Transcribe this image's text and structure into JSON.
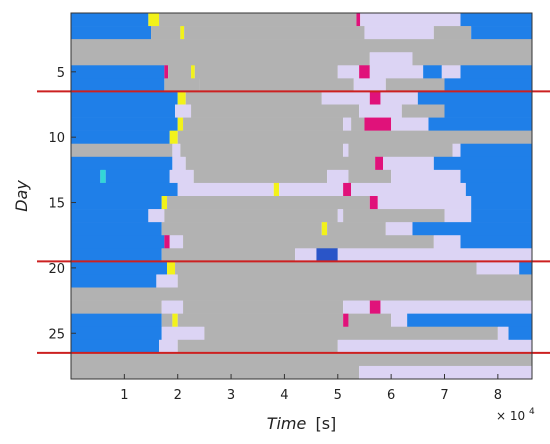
{
  "chart_data": {
    "type": "heatmap",
    "title": "",
    "xlabel": "Time",
    "xlabel_unit": "[s]",
    "ylabel": "Day",
    "x_multiplier_base": "× 10",
    "x_multiplier_exp": "4",
    "xlim": [
      0,
      86400
    ],
    "ylim": [
      1,
      28
    ],
    "x_ticks": [
      {
        "value": 10000,
        "label": "1"
      },
      {
        "value": 20000,
        "label": "2"
      },
      {
        "value": 30000,
        "label": "3"
      },
      {
        "value": 40000,
        "label": "4"
      },
      {
        "value": 50000,
        "label": "5"
      },
      {
        "value": 60000,
        "label": "6"
      },
      {
        "value": 70000,
        "label": "7"
      },
      {
        "value": 80000,
        "label": "8"
      }
    ],
    "y_ticks": [
      {
        "value": 5,
        "label": "5"
      },
      {
        "value": 10,
        "label": "10"
      },
      {
        "value": 15,
        "label": "15"
      },
      {
        "value": 20,
        "label": "20"
      },
      {
        "value": 25,
        "label": "25"
      }
    ],
    "separators_after_day": [
      6,
      19,
      26
    ],
    "separator_color": "#cc2020",
    "colors": {
      "B": "#1f7fe8",
      "G": "#b2b2b2",
      "L": "#dcd4f4",
      "M": "#e0127a",
      "Y": "#f2f21a",
      "C": "#33d6d6",
      "N": "#2a55c8"
    },
    "grid": false,
    "legend": "none",
    "rows": [
      {
        "day": 1,
        "segments": [
          [
            "B",
            0,
            14500
          ],
          [
            "Y",
            14500,
            16500
          ],
          [
            "G",
            16500,
            53500
          ],
          [
            "M",
            53500,
            54200
          ],
          [
            "L",
            54200,
            73000
          ],
          [
            "B",
            73000,
            86400
          ]
        ]
      },
      {
        "day": 2,
        "segments": [
          [
            "B",
            0,
            15000
          ],
          [
            "G",
            15000,
            20500
          ],
          [
            "Y",
            20500,
            21200
          ],
          [
            "G",
            21200,
            55000
          ],
          [
            "L",
            55000,
            68000
          ],
          [
            "G",
            68000,
            75000
          ],
          [
            "B",
            75000,
            86400
          ]
        ]
      },
      {
        "day": 3,
        "segments": [
          [
            "G",
            0,
            86400
          ]
        ]
      },
      {
        "day": 4,
        "segments": [
          [
            "G",
            0,
            56000
          ],
          [
            "L",
            56000,
            64000
          ],
          [
            "G",
            64000,
            86400
          ]
        ]
      },
      {
        "day": 5,
        "segments": [
          [
            "B",
            0,
            17500
          ],
          [
            "M",
            17500,
            18200
          ],
          [
            "G",
            18200,
            22500
          ],
          [
            "Y",
            22500,
            23200
          ],
          [
            "G",
            23200,
            50000
          ],
          [
            "L",
            50000,
            54000
          ],
          [
            "M",
            54000,
            56000
          ],
          [
            "L",
            56000,
            66000
          ],
          [
            "B",
            66000,
            69500
          ],
          [
            "L",
            69500,
            73000
          ],
          [
            "B",
            73000,
            86400
          ]
        ]
      },
      {
        "day": 6,
        "segments": [
          [
            "B",
            0,
            17500
          ],
          [
            "G",
            17500,
            24000
          ],
          [
            "G",
            24000,
            53000
          ],
          [
            "L",
            53000,
            59000
          ],
          [
            "G",
            59000,
            70000
          ],
          [
            "B",
            70000,
            86400
          ]
        ]
      },
      {
        "day": 7,
        "segments": [
          [
            "B",
            0,
            20000
          ],
          [
            "Y",
            20000,
            21500
          ],
          [
            "G",
            21500,
            47000
          ],
          [
            "L",
            47000,
            56000
          ],
          [
            "M",
            56000,
            58000
          ],
          [
            "L",
            58000,
            65000
          ],
          [
            "B",
            65000,
            86400
          ]
        ]
      },
      {
        "day": 8,
        "segments": [
          [
            "B",
            0,
            19500
          ],
          [
            "L",
            19500,
            22500
          ],
          [
            "G",
            22500,
            54000
          ],
          [
            "L",
            54000,
            62000
          ],
          [
            "G",
            62000,
            70000
          ],
          [
            "B",
            70000,
            86400
          ]
        ]
      },
      {
        "day": 9,
        "segments": [
          [
            "B",
            0,
            20000
          ],
          [
            "Y",
            20000,
            21000
          ],
          [
            "G",
            21000,
            51000
          ],
          [
            "L",
            51000,
            52500
          ],
          [
            "G",
            52500,
            55000
          ],
          [
            "M",
            55000,
            60000
          ],
          [
            "L",
            60000,
            67000
          ],
          [
            "B",
            67000,
            86400
          ]
        ]
      },
      {
        "day": 10,
        "segments": [
          [
            "B",
            0,
            18500
          ],
          [
            "Y",
            18500,
            20000
          ],
          [
            "G",
            20000,
            86400
          ]
        ]
      },
      {
        "day": 11,
        "segments": [
          [
            "G",
            0,
            19000
          ],
          [
            "L",
            19000,
            20500
          ],
          [
            "G",
            20500,
            51000
          ],
          [
            "L",
            51000,
            52000
          ],
          [
            "G",
            52000,
            71500
          ],
          [
            "L",
            71500,
            73000
          ],
          [
            "B",
            73000,
            86400
          ]
        ]
      },
      {
        "day": 12,
        "segments": [
          [
            "B",
            0,
            19000
          ],
          [
            "L",
            19000,
            21500
          ],
          [
            "G",
            21500,
            57000
          ],
          [
            "M",
            57000,
            58500
          ],
          [
            "L",
            58500,
            68000
          ],
          [
            "B",
            68000,
            86400
          ]
        ]
      },
      {
        "day": 13,
        "segments": [
          [
            "B",
            0,
            5500
          ],
          [
            "C",
            5500,
            6500
          ],
          [
            "B",
            6500,
            18500
          ],
          [
            "L",
            18500,
            23000
          ],
          [
            "G",
            23000,
            48000
          ],
          [
            "L",
            48000,
            52000
          ],
          [
            "G",
            52000,
            60000
          ],
          [
            "L",
            60000,
            73000
          ],
          [
            "B",
            73000,
            86400
          ]
        ]
      },
      {
        "day": 14,
        "segments": [
          [
            "B",
            0,
            20000
          ],
          [
            "L",
            20000,
            38000
          ],
          [
            "Y",
            38000,
            39000
          ],
          [
            "L",
            39000,
            51000
          ],
          [
            "M",
            51000,
            52500
          ],
          [
            "L",
            52500,
            74000
          ],
          [
            "B",
            74000,
            86400
          ]
        ]
      },
      {
        "day": 15,
        "segments": [
          [
            "B",
            0,
            17000
          ],
          [
            "Y",
            17000,
            18000
          ],
          [
            "G",
            18000,
            56000
          ],
          [
            "M",
            56000,
            57500
          ],
          [
            "L",
            57500,
            75000
          ],
          [
            "B",
            75000,
            86400
          ]
        ]
      },
      {
        "day": 16,
        "segments": [
          [
            "B",
            0,
            14500
          ],
          [
            "L",
            14500,
            17500
          ],
          [
            "G",
            17500,
            50000
          ],
          [
            "L",
            50000,
            51000
          ],
          [
            "G",
            51000,
            70000
          ],
          [
            "L",
            70000,
            75000
          ],
          [
            "B",
            75000,
            86400
          ]
        ]
      },
      {
        "day": 17,
        "segments": [
          [
            "B",
            0,
            17000
          ],
          [
            "G",
            17000,
            47000
          ],
          [
            "Y",
            47000,
            48000
          ],
          [
            "G",
            48000,
            59000
          ],
          [
            "L",
            59000,
            64000
          ],
          [
            "B",
            64000,
            86400
          ]
        ]
      },
      {
        "day": 18,
        "segments": [
          [
            "B",
            0,
            17500
          ],
          [
            "M",
            17500,
            18500
          ],
          [
            "L",
            18500,
            21000
          ],
          [
            "G",
            21000,
            68000
          ],
          [
            "L",
            68000,
            73000
          ],
          [
            "B",
            73000,
            86400
          ]
        ]
      },
      {
        "day": 19,
        "segments": [
          [
            "B",
            0,
            17000
          ],
          [
            "G",
            17000,
            42000
          ],
          [
            "L",
            42000,
            46000
          ],
          [
            "N",
            46000,
            50000
          ],
          [
            "L",
            50000,
            86400
          ]
        ]
      },
      {
        "day": 20,
        "segments": [
          [
            "B",
            0,
            18000
          ],
          [
            "Y",
            18000,
            19500
          ],
          [
            "G",
            19500,
            76000
          ],
          [
            "L",
            76000,
            84000
          ],
          [
            "B",
            84000,
            86400
          ]
        ]
      },
      {
        "day": 21,
        "segments": [
          [
            "B",
            0,
            16000
          ],
          [
            "L",
            16000,
            20000
          ],
          [
            "G",
            20000,
            86400
          ]
        ]
      },
      {
        "day": 22,
        "segments": [
          [
            "G",
            0,
            86400
          ]
        ]
      },
      {
        "day": 23,
        "segments": [
          [
            "G",
            0,
            17000
          ],
          [
            "L",
            17000,
            21000
          ],
          [
            "G",
            21000,
            51000
          ],
          [
            "L",
            51000,
            56000
          ],
          [
            "M",
            56000,
            58000
          ],
          [
            "L",
            58000,
            86400
          ]
        ]
      },
      {
        "day": 24,
        "segments": [
          [
            "B",
            0,
            17000
          ],
          [
            "G",
            17000,
            19000
          ],
          [
            "Y",
            19000,
            20000
          ],
          [
            "G",
            20000,
            51000
          ],
          [
            "M",
            51000,
            52000
          ],
          [
            "G",
            52000,
            60000
          ],
          [
            "L",
            60000,
            63000
          ],
          [
            "B",
            63000,
            86400
          ]
        ]
      },
      {
        "day": 25,
        "segments": [
          [
            "B",
            0,
            17000
          ],
          [
            "L",
            17000,
            25000
          ],
          [
            "G",
            25000,
            80000
          ],
          [
            "L",
            80000,
            82000
          ],
          [
            "B",
            82000,
            86400
          ]
        ]
      },
      {
        "day": 26,
        "segments": [
          [
            "B",
            0,
            16500
          ],
          [
            "L",
            16500,
            20000
          ],
          [
            "G",
            20000,
            50000
          ],
          [
            "L",
            50000,
            86400
          ]
        ]
      },
      {
        "day": 27,
        "segments": [
          [
            "G",
            0,
            86400
          ]
        ]
      },
      {
        "day": 28,
        "segments": [
          [
            "G",
            0,
            54000
          ],
          [
            "L",
            54000,
            86400
          ]
        ]
      }
    ]
  }
}
